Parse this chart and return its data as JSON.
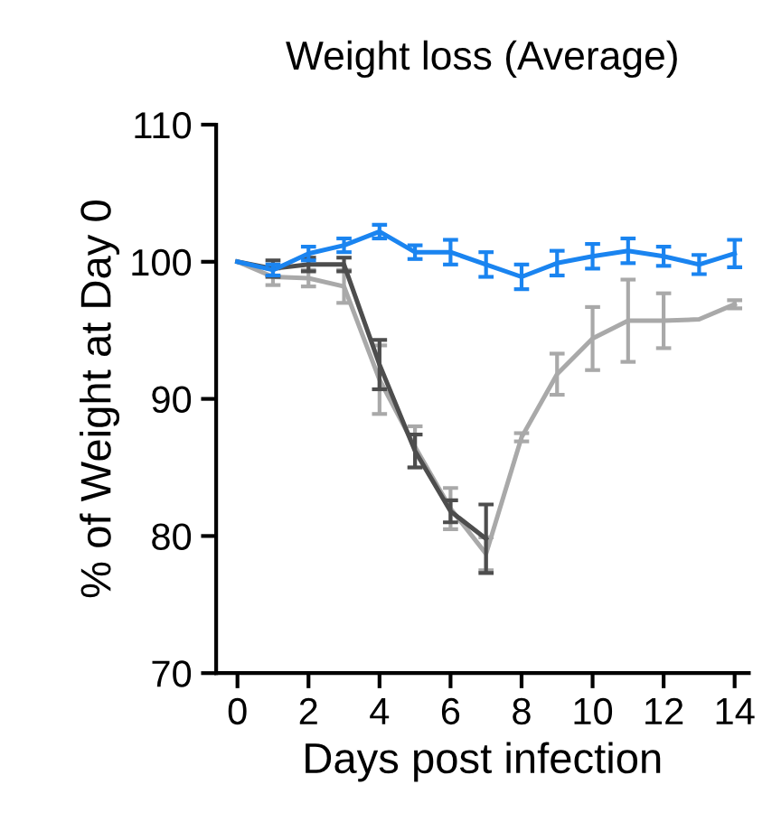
{
  "chart_data": {
    "type": "line",
    "title": "Weight loss (Average)",
    "xlabel": "Days post infection",
    "ylabel": "% of Weight at Day 0",
    "xlim": [
      -0.6,
      14.4
    ],
    "xticks": [
      0,
      2,
      4,
      6,
      8,
      10,
      12,
      14
    ],
    "ylim": [
      70,
      110
    ],
    "yticks": [
      70,
      80,
      90,
      100,
      110
    ],
    "grid": false,
    "legend": false,
    "marker": "none",
    "line_style": "solid",
    "series": [
      {
        "color": "#a9a9a9",
        "x": [
          0,
          1,
          2,
          3,
          4,
          5,
          6,
          7,
          8,
          9,
          10,
          11,
          12,
          13,
          14
        ],
        "values": [
          100,
          98.9,
          98.8,
          98.2,
          91.4,
          86.5,
          82,
          78.7,
          87.2,
          91.8,
          94.4,
          95.7,
          95.7,
          95.8,
          96.9
        ],
        "errors": [
          null,
          0.6,
          0.6,
          1.2,
          2.5,
          1.5,
          1.5,
          1.2,
          0.3,
          1.5,
          2.3,
          3,
          2,
          null,
          0.3
        ]
      },
      {
        "color": "#4d4d4d",
        "x": [
          0,
          1,
          2,
          3,
          4,
          5,
          6,
          7
        ],
        "values": [
          100,
          99.5,
          99.8,
          99.8,
          92.5,
          86.2,
          81.8,
          79.8
        ],
        "errors": [
          null,
          0.6,
          0.5,
          0.5,
          1.8,
          1.2,
          0.8,
          2.5
        ]
      },
      {
        "color": "#1a84f0",
        "x": [
          0,
          1,
          2,
          3,
          4,
          5,
          6,
          7,
          8,
          9,
          10,
          11,
          12,
          13,
          14
        ],
        "values": [
          100,
          99.4,
          100.6,
          101.2,
          102.2,
          100.7,
          100.7,
          99.8,
          98.9,
          99.9,
          100.4,
          100.8,
          100.4,
          99.8,
          100.6
        ],
        "errors": [
          null,
          0.4,
          0.5,
          0.5,
          0.5,
          0.5,
          0.9,
          0.9,
          0.9,
          0.9,
          0.9,
          0.9,
          0.7,
          0.7,
          1
        ]
      }
    ]
  }
}
